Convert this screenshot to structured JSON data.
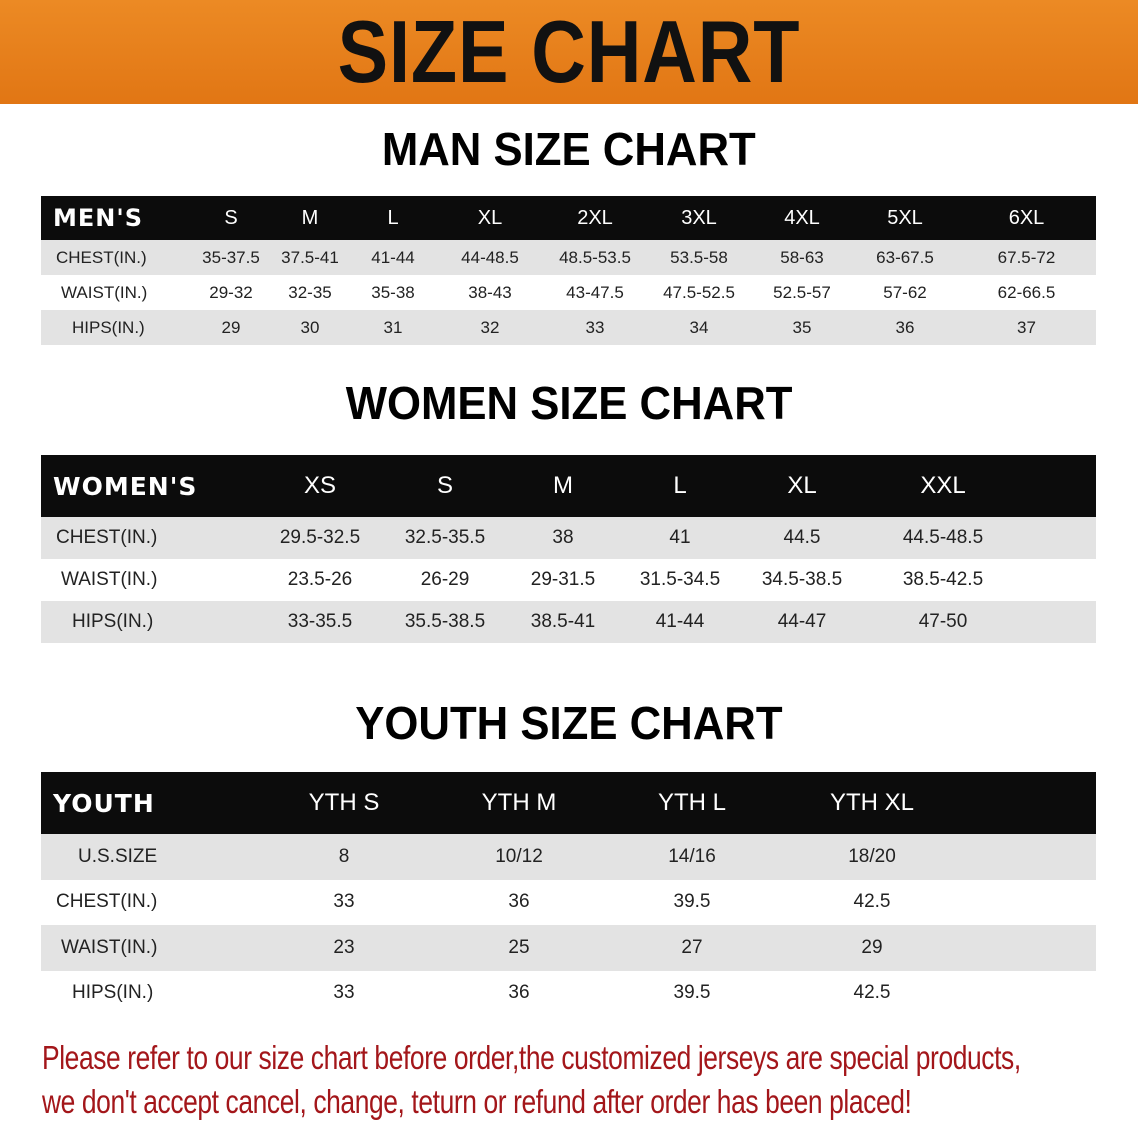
{
  "banner": {
    "title": "SIZE CHART",
    "color": "#e88020"
  },
  "men": {
    "title": "MAN SIZE CHART",
    "header": [
      "MEN'S",
      "S",
      "M",
      "L",
      "XL",
      "2XL",
      "3XL",
      "4XL",
      "5XL",
      "6XL"
    ],
    "rows": [
      [
        "CHEST(IN.)",
        "35-37.5",
        "37.5-41",
        "41-44",
        "44-48.5",
        "48.5-53.5",
        "53.5-58",
        "58-63",
        "63-67.5",
        "67.5-72"
      ],
      [
        "WAIST(IN.)",
        "29-32",
        "32-35",
        "35-38",
        "38-43",
        "43-47.5",
        "47.5-52.5",
        "52.5-57",
        "57-62",
        "62-66.5"
      ],
      [
        "HIPS(IN.)",
        "29",
        "30",
        "31",
        "32",
        "33",
        "34",
        "35",
        "36",
        "37"
      ]
    ]
  },
  "women": {
    "title": "WOMEN SIZE CHART",
    "header": [
      "WOMEN'S",
      "XS",
      "S",
      "M",
      "L",
      "XL",
      "XXL"
    ],
    "rows": [
      [
        "CHEST(IN.)",
        "29.5-32.5",
        "32.5-35.5",
        "38",
        "41",
        "44.5",
        "44.5-48.5"
      ],
      [
        "WAIST(IN.)",
        "23.5-26",
        "26-29",
        "29-31.5",
        "31.5-34.5",
        "34.5-38.5",
        "38.5-42.5"
      ],
      [
        "HIPS(IN.)",
        "33-35.5",
        "35.5-38.5",
        "38.5-41",
        "41-44",
        "44-47",
        "47-50"
      ]
    ]
  },
  "youth": {
    "title": "YOUTH SIZE CHART",
    "header": [
      "YOUTH",
      "YTH S",
      "YTH M",
      "YTH L",
      "YTH XL"
    ],
    "rows": [
      [
        "U.S.SIZE",
        "8",
        "10/12",
        "14/16",
        "18/20"
      ],
      [
        "CHEST(IN.)",
        "33",
        "36",
        "39.5",
        "42.5"
      ],
      [
        "WAIST(IN.)",
        "23",
        "25",
        "27",
        "29"
      ],
      [
        "HIPS(IN.)",
        "33",
        "36",
        "39.5",
        "42.5"
      ]
    ]
  },
  "note": {
    "line1": "Please refer to our size chart before order,the customized jerseys are special products,",
    "line2": "we don't accept cancel, change, teturn or refund after order has been placed!",
    "color": "#a3161a"
  }
}
